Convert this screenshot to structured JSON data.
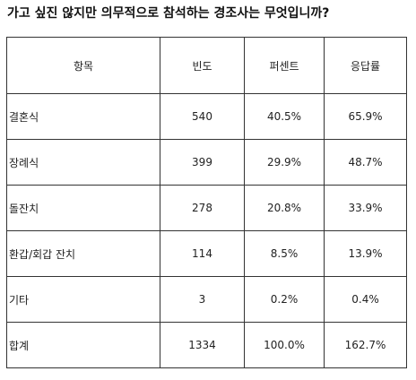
{
  "title": "가고 싶진 않지만 의무적으로 참석하는 경조사는 무엇입니까?",
  "chart_data": {
    "type": "table",
    "columns": [
      "항목",
      "빈도",
      "퍼센트",
      "응답률"
    ],
    "rows": [
      {
        "item": "결혼식",
        "frequency": "540",
        "percent": "40.5%",
        "response_rate": "65.9%"
      },
      {
        "item": "장례식",
        "frequency": "399",
        "percent": "29.9%",
        "response_rate": "48.7%"
      },
      {
        "item": "돌잔치",
        "frequency": "278",
        "percent": "20.8%",
        "response_rate": "33.9%"
      },
      {
        "item": "환갑/회갑 잔치",
        "frequency": "114",
        "percent": "8.5%",
        "response_rate": "13.9%"
      },
      {
        "item": "기타",
        "frequency": "3",
        "percent": "0.2%",
        "response_rate": "0.4%"
      },
      {
        "item": "합계",
        "frequency": "1334",
        "percent": "100.0%",
        "response_rate": "162.7%"
      }
    ]
  }
}
